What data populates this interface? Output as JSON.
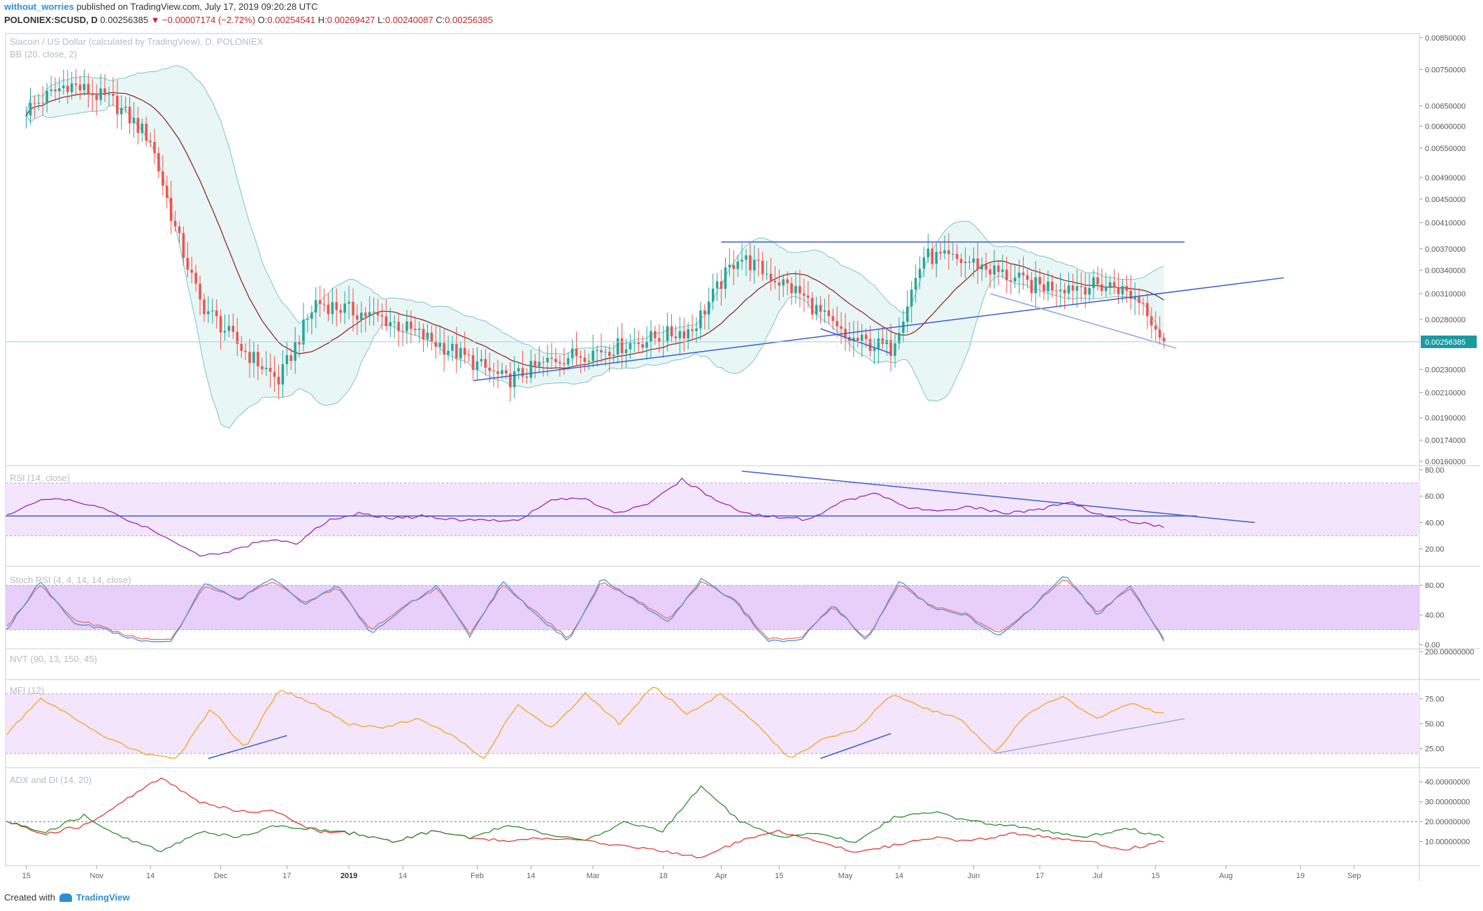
{
  "header": {
    "user": "without_worries",
    "published": "published on TradingView.com, July 17, 2019 09:20:28 UTC",
    "symbol": "POLONIEX:SCUSD, D",
    "price": "0.00256385",
    "change": "▼ −0.00007174 (−2.72%)",
    "o_label": "O:",
    "o_value": "0.00254541",
    "h_label": "H:",
    "h_value": "0.00269427",
    "l_label": "L:",
    "l_value": "0.00240087",
    "c_label": "C:",
    "c_value": "0.00256385"
  },
  "panes": {
    "main_title": "Siacoin / US Dollar (calculated by TradingView), D, POLONIEX",
    "main_sub": "BB (20, close, 2)",
    "rsi": "RSI (14, close)",
    "stoch": "Stoch RSI (4, 4, 14, 14, close)",
    "nvt": "NVT (90, 13, 150, 45)",
    "mfi": "MFI (12)",
    "adx": "ADX and DI (14, 20)"
  },
  "footer": {
    "created": "Created with",
    "brand": "TradingView"
  },
  "colors": {
    "up": "#26a69a",
    "down": "#ef5350",
    "band_fill": "#e8f6f5",
    "band_line": "#7ec4c8",
    "basis": "#8b1a1a",
    "trend": "#3a5fcd",
    "rsi": "#9c27b0",
    "rsi_zone": "#f3e5fc",
    "stoch_k": "#4a90e2",
    "stoch_d": "#e57368",
    "stoch_zone": "#e7cff9",
    "mfi": "#f4a51c",
    "adx": "#2c8f2c",
    "di": "#e53935",
    "price_label_bg": "#1a9aa0"
  },
  "chart_data": [
    {
      "type": "candlestick",
      "title": "Siacoin / US Dollar (calculated by TradingView), D, POLONIEX",
      "subtitle": "BB (20, close, 2)",
      "ylim": [
        0.0016,
        0.0085
      ],
      "y_scale": "log",
      "yticks": [
        "0.00850000",
        "0.00750000",
        "0.00650000",
        "0.00600000",
        "0.00550000",
        "0.00490000",
        "0.00450000",
        "0.00410000",
        "0.00370000",
        "0.00340000",
        "0.00310000",
        "0.00280000",
        "0.00230000",
        "0.00210000",
        "0.00190000",
        "0.00174000",
        "0.00160000"
      ],
      "last_price": "0.00256385",
      "x_labels": [
        "15",
        "Nov",
        "14",
        "Dec",
        "17",
        "2019",
        "14",
        "Feb",
        "14",
        "Mar",
        "18",
        "Apr",
        "15",
        "May",
        "14",
        "Jun",
        "17",
        "Jul",
        "15",
        "Aug",
        "19",
        "Sep"
      ],
      "key_points": [
        {
          "date": "2018-10-15",
          "close": 0.0064
        },
        {
          "date": "2018-10-25",
          "close": 0.0071
        },
        {
          "date": "2018-11-05",
          "close": 0.0066
        },
        {
          "date": "2018-11-14",
          "close": 0.0057
        },
        {
          "date": "2018-11-20",
          "close": 0.004
        },
        {
          "date": "2018-11-26",
          "close": 0.003
        },
        {
          "date": "2018-12-06",
          "close": 0.0025
        },
        {
          "date": "2018-12-15",
          "close": 0.0022
        },
        {
          "date": "2018-12-24",
          "close": 0.003
        },
        {
          "date": "2019-01-10",
          "close": 0.0028
        },
        {
          "date": "2019-01-25",
          "close": 0.0025
        },
        {
          "date": "2019-02-08",
          "close": 0.0022
        },
        {
          "date": "2019-02-20",
          "close": 0.0024
        },
        {
          "date": "2019-03-05",
          "close": 0.0025
        },
        {
          "date": "2019-03-25",
          "close": 0.0027
        },
        {
          "date": "2019-04-05",
          "close": 0.0036
        },
        {
          "date": "2019-04-20",
          "close": 0.0031
        },
        {
          "date": "2019-05-01",
          "close": 0.0026
        },
        {
          "date": "2019-05-12",
          "close": 0.0025
        },
        {
          "date": "2019-05-20",
          "close": 0.0036
        },
        {
          "date": "2019-06-01",
          "close": 0.0035
        },
        {
          "date": "2019-06-15",
          "close": 0.0032
        },
        {
          "date": "2019-07-05",
          "close": 0.0032
        },
        {
          "date": "2019-07-12",
          "close": 0.003
        },
        {
          "date": "2019-07-17",
          "close": 0.00256385
        }
      ],
      "trendlines": [
        {
          "from": {
            "date": "2019-04-01",
            "price": 0.0038
          },
          "to": {
            "date": "2019-07-22",
            "price": 0.0038
          }
        },
        {
          "from": {
            "date": "2019-01-31",
            "price": 0.0022
          },
          "to": {
            "date": "2019-08-15",
            "price": 0.0033
          }
        },
        {
          "from": {
            "date": "2019-06-05",
            "price": 0.0031
          },
          "to": {
            "date": "2019-07-20",
            "price": 0.0025
          }
        },
        {
          "from": {
            "date": "2019-04-25",
            "price": 0.0027
          },
          "to": {
            "date": "2019-05-12",
            "price": 0.00245
          }
        }
      ]
    },
    {
      "type": "line",
      "name": "RSI (14, close)",
      "ylim": [
        10,
        80
      ],
      "yticks": [
        "80.00",
        "60.00",
        "40.00",
        "20.00"
      ],
      "band": [
        30,
        70
      ],
      "values": [
        45,
        57,
        58,
        50,
        40,
        28,
        15,
        18,
        27,
        24,
        42,
        47,
        43,
        45,
        42,
        41,
        43,
        57,
        58,
        47,
        54,
        73,
        58,
        47,
        44,
        42,
        56,
        62,
        52,
        48,
        52,
        47,
        49,
        56,
        46,
        41,
        37
      ]
    },
    {
      "type": "line",
      "name": "Stoch RSI (4, 4, 14, 14, close)",
      "ylim": [
        0,
        100
      ],
      "yticks": [
        "80.00",
        "40.00",
        "0.00"
      ],
      "band": [
        20,
        80
      ],
      "k": [
        20,
        85,
        30,
        20,
        5,
        5,
        85,
        60,
        90,
        55,
        80,
        15,
        50,
        80,
        10,
        85,
        40,
        5,
        90,
        60,
        30,
        88,
        60,
        5,
        5,
        55,
        5,
        85,
        50,
        40,
        10,
        50,
        95,
        40,
        80,
        5
      ],
      "d": [
        25,
        80,
        35,
        22,
        8,
        8,
        80,
        62,
        85,
        58,
        76,
        20,
        52,
        76,
        14,
        80,
        44,
        8,
        85,
        62,
        34,
        84,
        62,
        8,
        8,
        52,
        8,
        80,
        52,
        42,
        14,
        50,
        90,
        44,
        76,
        8
      ]
    },
    {
      "type": "line",
      "name": "NVT (90, 13, 150, 45)",
      "ylim": [
        0,
        200
      ],
      "yticks": [
        "200.00000000"
      ],
      "values": []
    },
    {
      "type": "line",
      "name": "MFI (12)",
      "ylim": [
        10,
        90
      ],
      "yticks": [
        "75.00",
        "50.00",
        "25.00"
      ],
      "band": [
        20,
        80
      ],
      "values": [
        40,
        75,
        55,
        35,
        20,
        15,
        65,
        25,
        85,
        70,
        50,
        45,
        55,
        40,
        15,
        70,
        45,
        80,
        50,
        88,
        60,
        80,
        50,
        15,
        35,
        45,
        80,
        65,
        55,
        20,
        60,
        78,
        55,
        70,
        60
      ]
    },
    {
      "type": "line",
      "name": "ADX and DI (14, 20)",
      "ylim": [
        0,
        45
      ],
      "yticks": [
        "40.00000000",
        "30.00000000",
        "20.00000000",
        "10.00000000"
      ],
      "reference_line": 20,
      "adx": [
        20,
        15,
        23,
        12,
        5,
        15,
        12,
        18,
        16,
        14,
        10,
        15,
        12,
        18,
        14,
        10,
        20,
        15,
        38,
        20,
        12,
        14,
        10,
        22,
        25,
        20,
        18,
        15,
        12,
        17,
        12
      ],
      "di": [
        20,
        14,
        18,
        30,
        42,
        30,
        25,
        25,
        15,
        14,
        10,
        15,
        12,
        10,
        12,
        10,
        8,
        5,
        2,
        10,
        15,
        10,
        5,
        8,
        12,
        10,
        14,
        12,
        10,
        6,
        10
      ]
    }
  ]
}
